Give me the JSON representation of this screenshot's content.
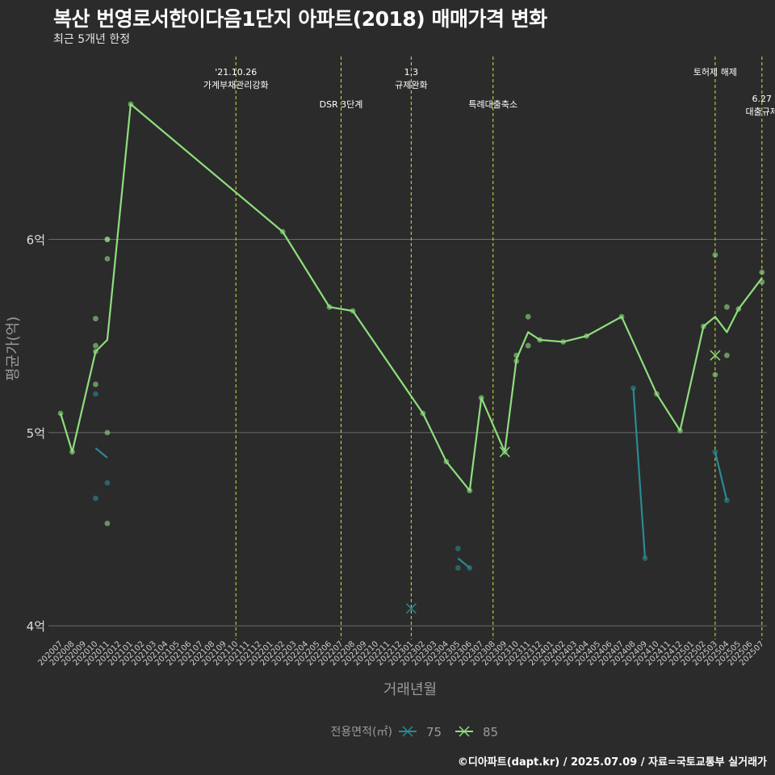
{
  "title": "복산 번영로서한이다음1단지 아파트(2018) 매매가격 변화",
  "subtitle": "최근 5개년 한정",
  "caption": "©디아파트(dapt.kr) / 2025.07.09 / 자료=국토교통부 실거래가",
  "chart_data": {
    "type": "line",
    "xlabel": "거래년월",
    "ylabel": "평균가(억)",
    "ylim": [
      3.93,
      6.98
    ],
    "yticks": [
      4,
      5,
      6
    ],
    "ytick_labels": [
      "4억",
      "5억",
      "6억"
    ],
    "x_labels": [
      "202007",
      "202008",
      "202009",
      "202010",
      "202011",
      "202012",
      "202101",
      "202102",
      "202103",
      "202104",
      "202105",
      "202106",
      "202107",
      "202108",
      "202109",
      "202110",
      "202111",
      "202112",
      "202201",
      "202202",
      "202203",
      "202204",
      "202205",
      "202206",
      "202207",
      "202208",
      "202209",
      "202210",
      "202211",
      "202212",
      "202301",
      "202302",
      "202303",
      "202304",
      "202305",
      "202306",
      "202307",
      "202308",
      "202309",
      "202310",
      "202311",
      "202312",
      "202401",
      "202402",
      "202403",
      "202404",
      "202405",
      "202406",
      "202407",
      "202408",
      "202409",
      "202410",
      "202411",
      "202412",
      "202501",
      "202502",
      "202503",
      "202504",
      "202505",
      "202506",
      "202507"
    ],
    "legend": {
      "title": "전용면적(㎡)",
      "items": [
        {
          "name": "75",
          "color": "#2a8a93"
        },
        {
          "name": "85",
          "color": "#8ede7e"
        }
      ]
    },
    "series": [
      {
        "name": "85",
        "color": "#8ede7e",
        "line": [
          [
            0,
            5.1
          ],
          [
            1,
            4.9
          ],
          [
            3,
            5.42
          ],
          [
            4,
            5.48
          ],
          [
            6,
            6.7
          ],
          [
            19,
            6.04
          ],
          [
            23,
            5.65
          ],
          [
            25,
            5.63
          ],
          [
            31,
            5.1
          ],
          [
            33,
            4.85
          ],
          [
            35,
            4.7
          ],
          [
            36,
            5.18
          ],
          [
            38,
            4.9
          ],
          [
            39,
            5.38
          ],
          [
            40,
            5.52
          ],
          [
            41,
            5.48
          ],
          [
            43,
            5.47
          ],
          [
            45,
            5.5
          ],
          [
            48,
            5.6
          ],
          [
            51,
            5.2
          ],
          [
            53,
            5.01
          ],
          [
            55,
            5.55
          ],
          [
            56,
            5.6
          ],
          [
            57,
            5.52
          ],
          [
            58,
            5.64
          ],
          [
            60,
            5.8
          ]
        ],
        "points": [
          [
            0,
            5.1
          ],
          [
            1,
            4.9
          ],
          [
            3,
            5.59
          ],
          [
            3,
            5.45
          ],
          [
            3,
            5.42
          ],
          [
            3,
            5.25
          ],
          [
            4,
            6.0
          ],
          [
            4,
            6.0
          ],
          [
            4,
            5.9
          ],
          [
            4,
            5.0
          ],
          [
            4,
            4.53
          ],
          [
            6,
            6.7
          ],
          [
            19,
            6.04
          ],
          [
            23,
            5.65
          ],
          [
            25,
            5.63
          ],
          [
            31,
            5.1
          ],
          [
            33,
            4.85
          ],
          [
            35,
            4.7
          ],
          [
            36,
            5.18
          ],
          [
            38,
            4.9
          ],
          [
            39,
            5.4
          ],
          [
            39,
            5.37
          ],
          [
            40,
            5.6
          ],
          [
            40,
            5.45
          ],
          [
            41,
            5.48
          ],
          [
            43,
            5.47
          ],
          [
            45,
            5.5
          ],
          [
            48,
            5.6
          ],
          [
            51,
            5.2
          ],
          [
            53,
            5.01
          ],
          [
            55,
            5.55
          ],
          [
            56,
            5.92
          ],
          [
            56,
            5.3
          ],
          [
            57,
            5.65
          ],
          [
            57,
            5.4
          ],
          [
            58,
            5.64
          ],
          [
            60,
            5.83
          ],
          [
            60,
            5.78
          ]
        ],
        "x_marks": [
          [
            38,
            4.9
          ],
          [
            56,
            5.4
          ]
        ]
      },
      {
        "name": "75",
        "color": "#2a8a93",
        "line_segments": [
          [
            [
              3,
              4.92
            ],
            [
              4,
              4.87
            ]
          ],
          [
            [
              34,
              4.35
            ],
            [
              35,
              4.3
            ]
          ],
          [
            [
              49,
              5.23
            ],
            [
              50,
              4.35
            ]
          ],
          [
            [
              56,
              4.9
            ],
            [
              57,
              4.65
            ]
          ]
        ],
        "points": [
          [
            3,
            5.2
          ],
          [
            3,
            4.66
          ],
          [
            4,
            4.74
          ],
          [
            34,
            4.4
          ],
          [
            34,
            4.3
          ],
          [
            35,
            4.3
          ],
          [
            49,
            5.23
          ],
          [
            50,
            4.35
          ],
          [
            56,
            4.9
          ],
          [
            57,
            4.65
          ]
        ],
        "x_marks": [
          [
            30,
            4.09
          ]
        ]
      }
    ],
    "annotations": [
      {
        "x": 15,
        "lines": [
          "'21.10.26",
          "가계부채관리강화"
        ],
        "row": 0
      },
      {
        "x": 24,
        "lines": [
          "DSR 3단계"
        ],
        "row": 1
      },
      {
        "x": 30,
        "lines": [
          "1.3",
          "규제완화"
        ],
        "row": 0
      },
      {
        "x": 37,
        "lines": [
          "특례대출축소"
        ],
        "row": 1
      },
      {
        "x": 56,
        "lines": [
          "토허제 해제"
        ],
        "row": 0
      },
      {
        "x": 60,
        "lines": [
          "6.27",
          "대출규제"
        ],
        "row": 2
      }
    ]
  }
}
